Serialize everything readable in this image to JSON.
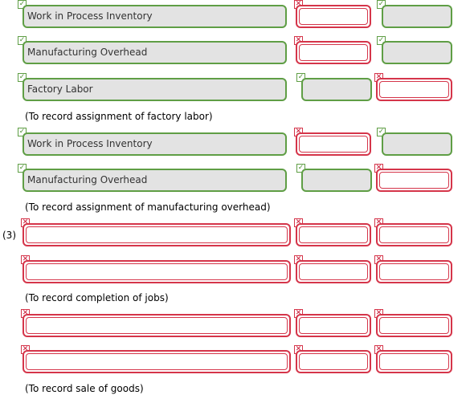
{
  "glyphs": {
    "check": "✓",
    "cross": "✕"
  },
  "colors": {
    "correct": "#5f9e45",
    "incorrect": "#d5354a",
    "filled": "#e3e3e3"
  },
  "entries": [
    {
      "account": "Work in Process Inventory",
      "account_status": "correct",
      "debit": "",
      "debit_status": "incorrect",
      "credit": "",
      "credit_status": "correct"
    },
    {
      "account": "Manufacturing Overhead",
      "account_status": "correct",
      "debit": "",
      "debit_status": "incorrect",
      "credit": "",
      "credit_status": "correct"
    },
    {
      "account": "Factory Labor",
      "account_status": "correct",
      "debit": "",
      "debit_status": "correct",
      "credit": "",
      "credit_status": "incorrect"
    },
    {
      "account": "Work in Process Inventory",
      "account_status": "correct",
      "debit": "",
      "debit_status": "incorrect",
      "credit": "",
      "credit_status": "correct"
    },
    {
      "account": "Manufacturing Overhead",
      "account_status": "correct",
      "debit": "",
      "debit_status": "correct",
      "credit": "",
      "credit_status": "incorrect"
    },
    {
      "account": "",
      "account_status": "incorrect",
      "debit": "",
      "debit_status": "incorrect",
      "credit": "",
      "credit_status": "incorrect"
    },
    {
      "account": "",
      "account_status": "incorrect",
      "debit": "",
      "debit_status": "incorrect",
      "credit": "",
      "credit_status": "incorrect"
    },
    {
      "account": "",
      "account_status": "incorrect",
      "debit": "",
      "debit_status": "incorrect",
      "credit": "",
      "credit_status": "incorrect"
    },
    {
      "account": "",
      "account_status": "incorrect",
      "debit": "",
      "debit_status": "incorrect",
      "credit": "",
      "credit_status": "incorrect"
    }
  ],
  "notes": {
    "factory_labor": "(To record assignment of factory labor)",
    "overhead": "(To record assignment of manufacturing overhead)",
    "completion": "(To record completion of jobs)",
    "sale": "(To record sale of goods)"
  },
  "step_label": "(3)"
}
